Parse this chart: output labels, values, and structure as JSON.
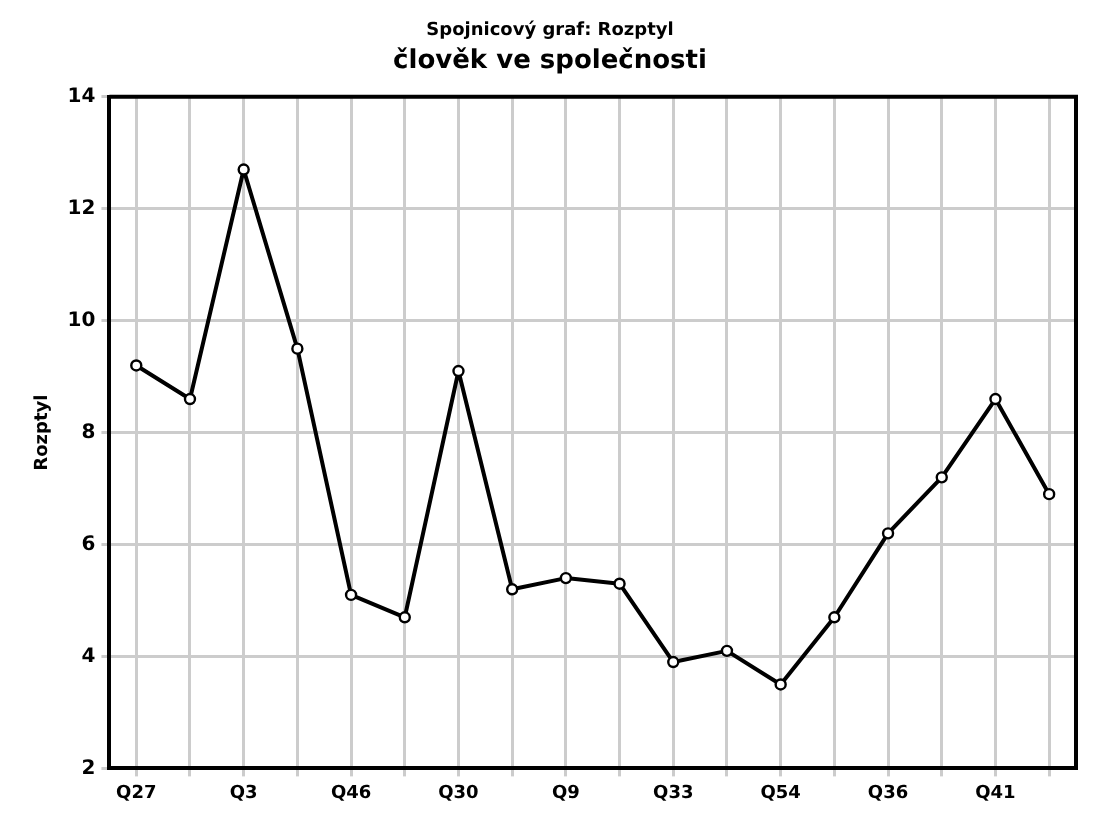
{
  "chart_data": {
    "type": "line",
    "title": "Spojnicový graf: Rozptyl",
    "subtitle": "člověk ve společnosti",
    "ylabel": "Rozptyl",
    "categories": [
      "Q27",
      null,
      "Q3",
      null,
      "Q46",
      null,
      "Q30",
      null,
      "Q9",
      null,
      "Q33",
      null,
      "Q54",
      null,
      "Q36",
      null,
      "Q41",
      null
    ],
    "series": [
      {
        "color": "#000000",
        "values": [
          9.2,
          8.6,
          12.7,
          9.5,
          5.1,
          4.7,
          9.1,
          5.2,
          5.4,
          5.3,
          3.9,
          4.1,
          3.5,
          4.7,
          6.2,
          7.2,
          8.6,
          6.9
        ]
      }
    ],
    "ylim": [
      2,
      14
    ],
    "yticks": [
      2,
      4,
      6,
      8,
      10,
      12,
      14
    ],
    "grid": true,
    "marker": "circle",
    "line_style": "solid",
    "legend": false
  }
}
